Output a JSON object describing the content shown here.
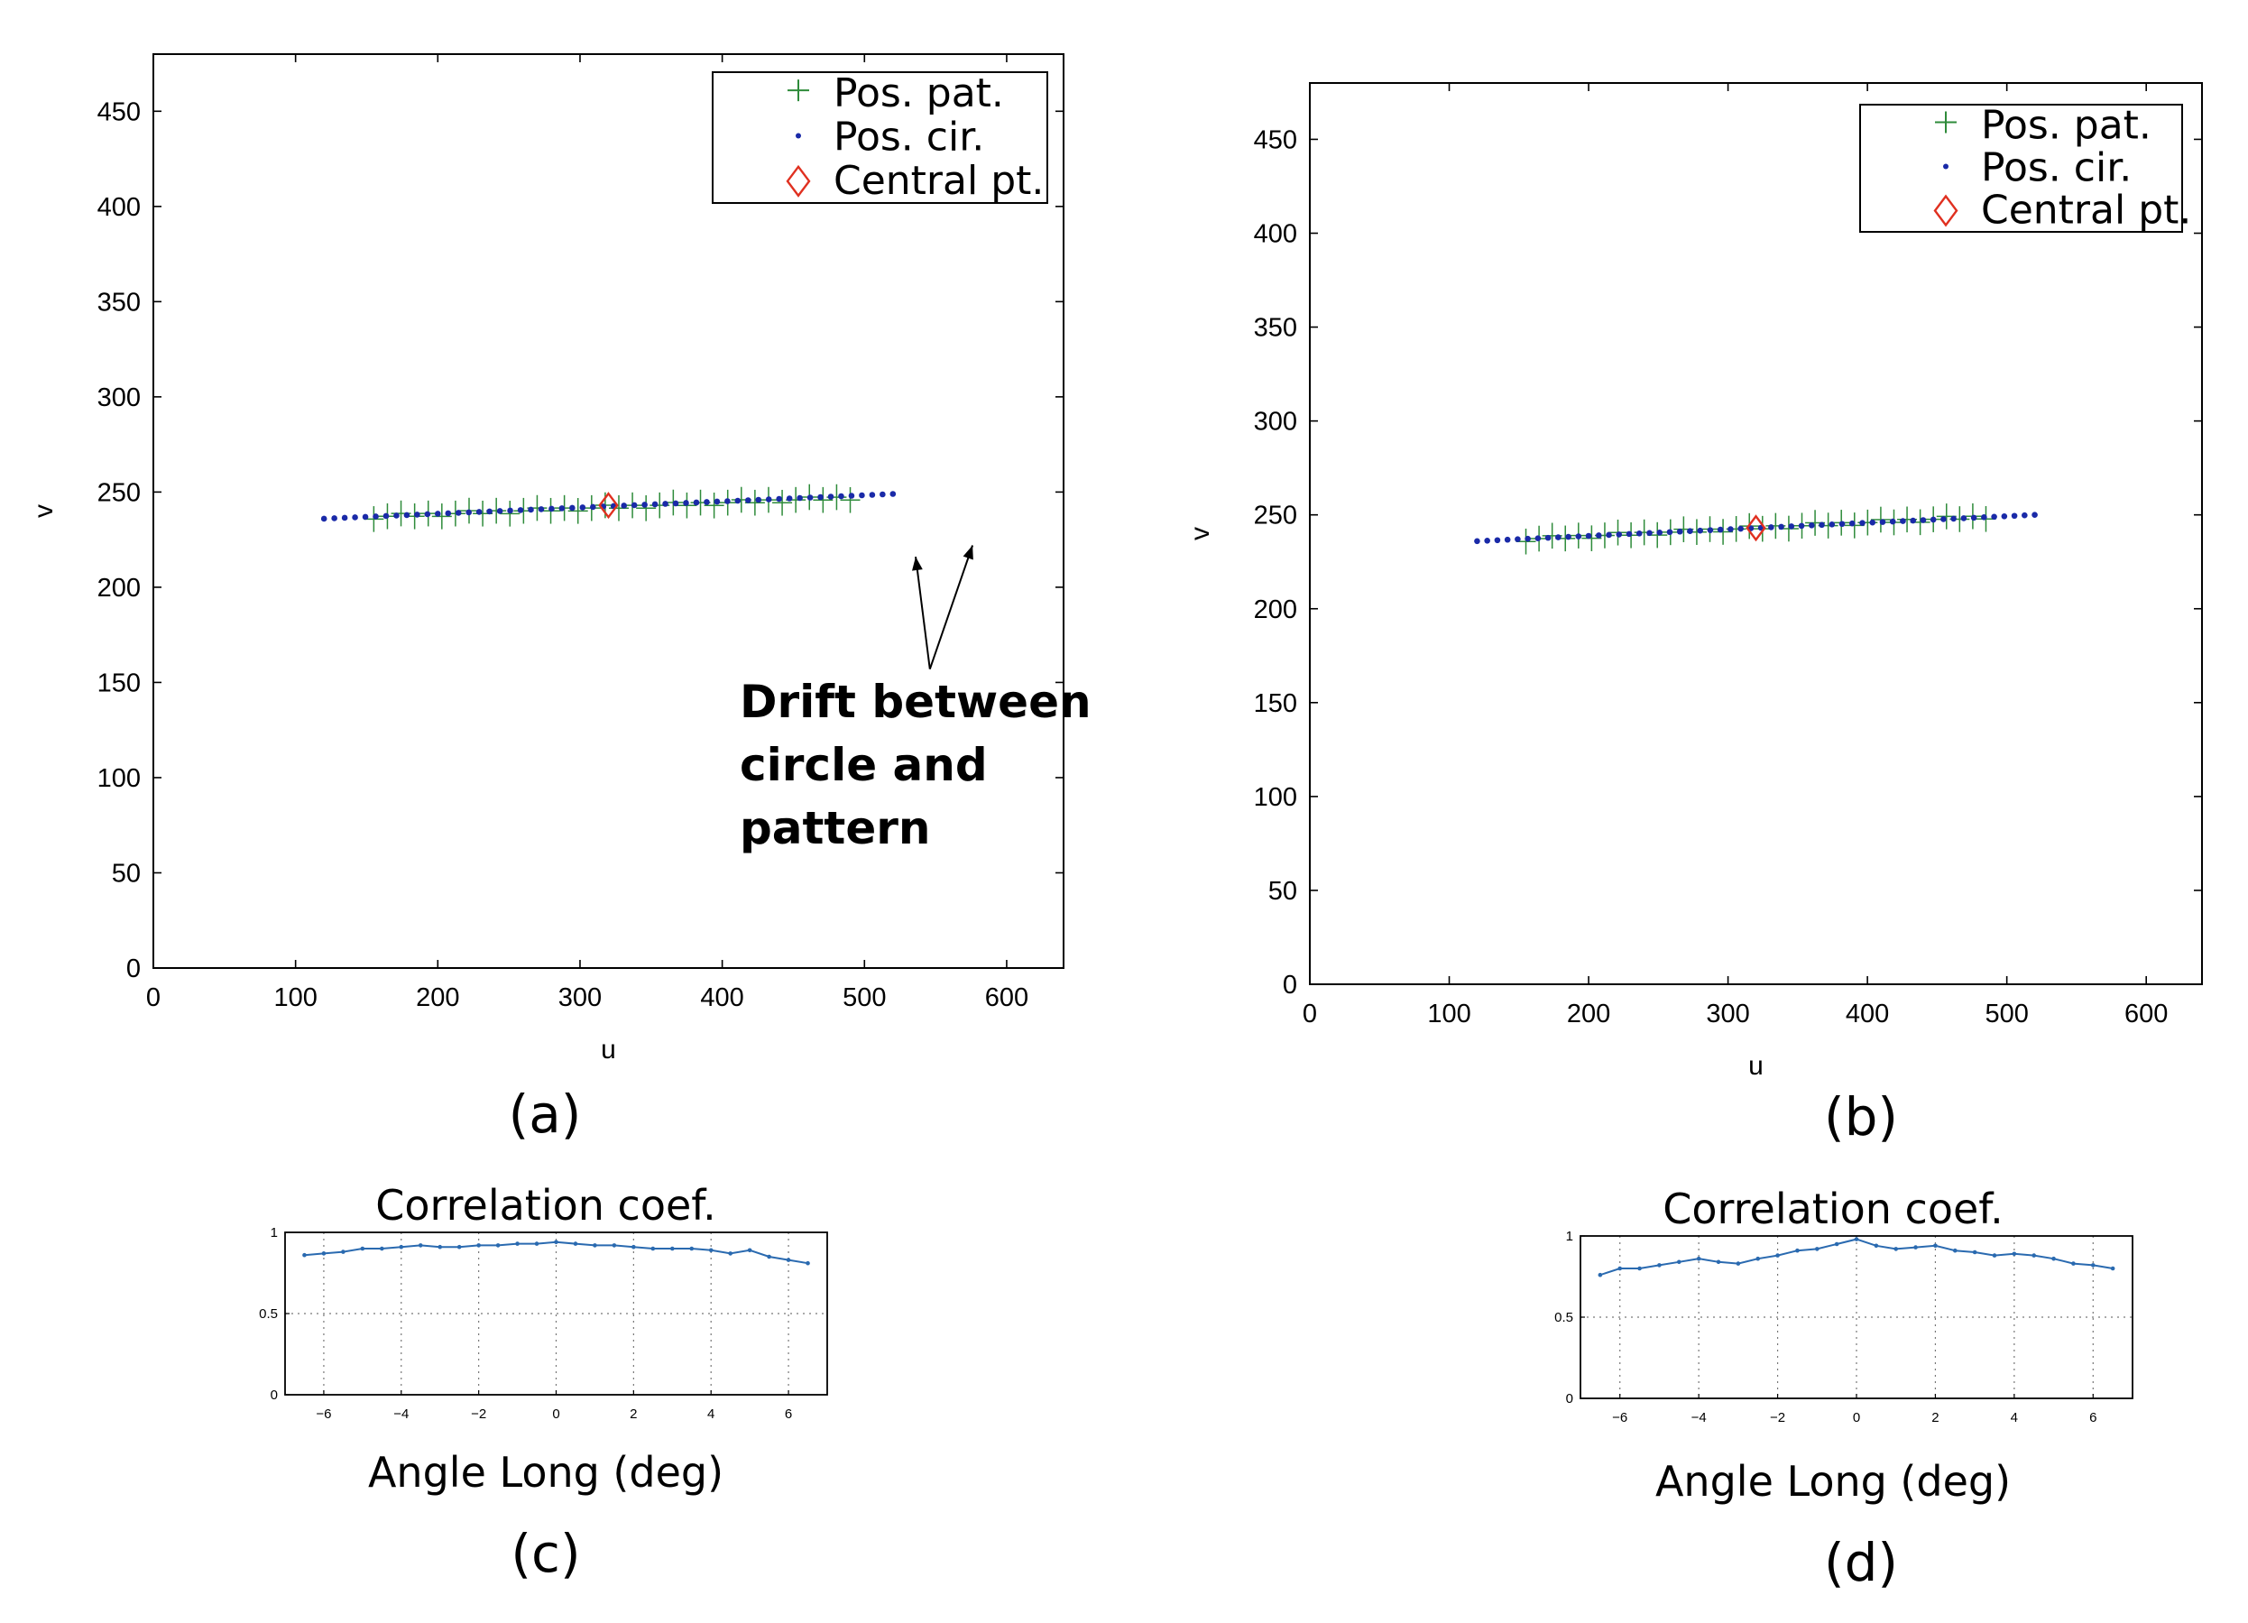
{
  "chart_data": [
    {
      "type": "scatter",
      "panel": "a",
      "caption": "(a)",
      "xlabel": "u",
      "ylabel": "v",
      "xlim": [
        0,
        640
      ],
      "ylim": [
        0,
        480
      ],
      "xticks": [
        0,
        100,
        200,
        300,
        400,
        500,
        600
      ],
      "yticks": [
        0,
        50,
        100,
        150,
        200,
        250,
        300,
        350,
        400,
        450
      ],
      "legend_position": "top-right",
      "legend": [
        "Pos. pat.",
        "Pos. cir.",
        "Central pt."
      ],
      "series": [
        {
          "name": "Pos. pat.",
          "marker": "plus",
          "color": "#2e8b3a",
          "x_range": [
            155,
            490
          ],
          "line_start": [
            155,
            237
          ],
          "line_end": [
            490,
            247
          ],
          "count": 36
        },
        {
          "name": "Pos. cir.",
          "marker": "dot",
          "color": "#1a2aa8",
          "x_range": [
            120,
            520
          ],
          "line_start": [
            120,
            236
          ],
          "line_end": [
            520,
            249
          ],
          "count": 56
        },
        {
          "name": "Central pt.",
          "marker": "diamond",
          "color": "#e03020",
          "points": [
            [
              320,
              243
            ]
          ]
        }
      ],
      "annotation": {
        "lines": [
          "Drift between",
          "circle and",
          "pattern"
        ],
        "arrow_tip_a": [
          536,
          216
        ],
        "arrow_tip_b": [
          576,
          222
        ],
        "arrow_base": [
          546,
          157
        ]
      }
    },
    {
      "type": "scatter",
      "panel": "b",
      "caption": "(b)",
      "xlabel": "u",
      "ylabel": "v",
      "xlim": [
        0,
        640
      ],
      "ylim": [
        0,
        480
      ],
      "xticks": [
        0,
        100,
        200,
        300,
        400,
        500,
        600
      ],
      "yticks": [
        0,
        50,
        100,
        150,
        200,
        250,
        300,
        350,
        400,
        450
      ],
      "legend_position": "top-right",
      "legend": [
        "Pos. pat.",
        "Pos. cir.",
        "Central pt."
      ],
      "series": [
        {
          "name": "Pos. pat.",
          "marker": "plus",
          "color": "#2e8b3a",
          "x_range": [
            155,
            485
          ],
          "line_start": [
            155,
            237
          ],
          "line_end": [
            485,
            249
          ],
          "count": 36
        },
        {
          "name": "Pos. cir.",
          "marker": "dot",
          "color": "#1a2aa8",
          "x_range": [
            120,
            520
          ],
          "line_start": [
            120,
            236
          ],
          "line_end": [
            520,
            250
          ],
          "count": 56
        },
        {
          "name": "Central pt.",
          "marker": "diamond",
          "color": "#e03020",
          "points": [
            [
              320,
              243
            ]
          ]
        }
      ]
    },
    {
      "type": "line",
      "panel": "c",
      "caption": "(c)",
      "title": "Correlation coef.",
      "xlabel": "Angle Long (deg)",
      "xlim": [
        -7,
        7
      ],
      "ylim": [
        0,
        1
      ],
      "xticks": [
        -6,
        -4,
        -2,
        0,
        2,
        4,
        6
      ],
      "ytick_labels": [
        "0",
        "0.5",
        "1"
      ],
      "yticks": [
        0,
        0.5,
        1
      ],
      "grid": true,
      "color": "#2a6ab0",
      "x": [
        -6.5,
        -6,
        -5.5,
        -5,
        -4.5,
        -4,
        -3.5,
        -3,
        -2.5,
        -2,
        -1.5,
        -1,
        -0.5,
        0,
        0.5,
        1,
        1.5,
        2,
        2.5,
        3,
        3.5,
        4,
        4.5,
        5,
        5.5,
        6,
        6.5
      ],
      "y": [
        0.86,
        0.87,
        0.88,
        0.9,
        0.9,
        0.91,
        0.92,
        0.91,
        0.91,
        0.92,
        0.92,
        0.93,
        0.93,
        0.94,
        0.93,
        0.92,
        0.92,
        0.91,
        0.9,
        0.9,
        0.9,
        0.89,
        0.87,
        0.89,
        0.85,
        0.83,
        0.81
      ]
    },
    {
      "type": "line",
      "panel": "d",
      "caption": "(d)",
      "title": "Correlation coef.",
      "xlabel": "Angle Long (deg)",
      "xlim": [
        -7,
        7
      ],
      "ylim": [
        0,
        1
      ],
      "xticks": [
        -6,
        -4,
        -2,
        0,
        2,
        4,
        6
      ],
      "ytick_labels": [
        "0",
        "0.5",
        "1"
      ],
      "yticks": [
        0,
        0.5,
        1
      ],
      "grid": true,
      "color": "#2a6ab0",
      "x": [
        -6.5,
        -6,
        -5.5,
        -5,
        -4.5,
        -4,
        -3.5,
        -3,
        -2.5,
        -2,
        -1.5,
        -1,
        -0.5,
        0,
        0.5,
        1,
        1.5,
        2,
        2.5,
        3,
        3.5,
        4,
        4.5,
        5,
        5.5,
        6,
        6.5
      ],
      "y": [
        0.76,
        0.8,
        0.8,
        0.82,
        0.84,
        0.86,
        0.84,
        0.83,
        0.86,
        0.88,
        0.91,
        0.92,
        0.95,
        0.98,
        0.94,
        0.92,
        0.93,
        0.94,
        0.91,
        0.9,
        0.88,
        0.89,
        0.88,
        0.86,
        0.83,
        0.82,
        0.8
      ]
    }
  ]
}
